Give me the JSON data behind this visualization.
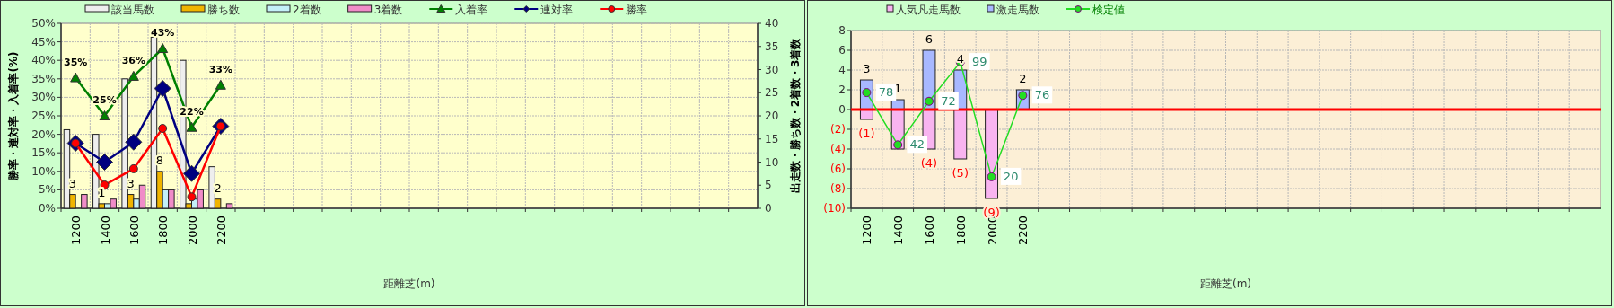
{
  "chart_data": [
    {
      "type": "bar",
      "xlabel": "距離芝(m)",
      "ylabel": "勝率・連対率・入着率(%)",
      "y2label": "出走数・勝ち数・2着数・3着数",
      "categories": [
        "1200",
        "1400",
        "1600",
        "1800",
        "2000",
        "2200",
        null,
        null,
        null,
        null,
        null,
        null,
        null,
        null,
        null,
        null,
        null,
        null,
        null,
        null,
        null,
        null,
        null,
        null
      ],
      "series": [
        {
          "name": "該当馬数",
          "axis": "y2",
          "color": "#eeeeee",
          "values": [
            17,
            16,
            28,
            37,
            32,
            9,
            null,
            null,
            null,
            null,
            null,
            null,
            null,
            null,
            null,
            null,
            null,
            null,
            null,
            null,
            null,
            null,
            null,
            null
          ]
        },
        {
          "name": "勝ち数",
          "axis": "y2",
          "color": "#f0b400",
          "values": [
            3,
            1,
            3,
            8,
            1,
            2,
            null,
            null,
            null,
            null,
            null,
            null,
            null,
            null,
            null,
            null,
            null,
            null,
            null,
            null,
            null,
            null,
            null,
            null
          ],
          "value_labels": [
            "3",
            "1",
            "3",
            "8",
            null,
            "2",
            null,
            null,
            null,
            null,
            null,
            null,
            null,
            null,
            null,
            null,
            null,
            null,
            null,
            null,
            null,
            null,
            null,
            null
          ]
        },
        {
          "name": "2着数",
          "axis": "y2",
          "color": "#c4f0f8",
          "values": [
            0,
            1,
            2,
            4,
            2,
            0,
            null,
            null,
            null,
            null,
            null,
            null,
            null,
            null,
            null,
            null,
            null,
            null,
            null,
            null,
            null,
            null,
            null,
            null
          ]
        },
        {
          "name": "3着数",
          "axis": "y2",
          "color": "#f08cc8",
          "values": [
            3,
            2,
            5,
            4,
            4,
            1,
            null,
            null,
            null,
            null,
            null,
            null,
            null,
            null,
            null,
            null,
            null,
            null,
            null,
            null,
            null,
            null,
            null,
            null
          ]
        },
        {
          "name": "入着率",
          "type": "line",
          "marker": "triangle",
          "color": "#008000",
          "values": [
            35.3,
            25,
            35.7,
            43.2,
            21.9,
            33.3,
            null,
            null,
            null,
            null,
            null,
            null,
            null,
            null,
            null,
            null,
            null,
            null,
            null,
            null,
            null,
            null,
            null,
            null
          ],
          "value_labels": [
            "35%",
            "25%",
            "36%",
            "43%",
            "22%",
            "33%",
            null,
            null,
            null,
            null,
            null,
            null,
            null,
            null,
            null,
            null,
            null,
            null,
            null,
            null,
            null,
            null,
            null,
            null
          ]
        },
        {
          "name": "連対率",
          "type": "line",
          "marker": "diamond",
          "color": "#000080",
          "values": [
            17.6,
            12.5,
            17.9,
            32.4,
            9.4,
            22.2,
            null,
            null,
            null,
            null,
            null,
            null,
            null,
            null,
            null,
            null,
            null,
            null,
            null,
            null,
            null,
            null,
            null,
            null
          ]
        },
        {
          "name": "勝率",
          "type": "line",
          "marker": "circle",
          "color": "#ff0000",
          "values": [
            17.6,
            6.3,
            10.7,
            21.6,
            3.1,
            22.2,
            null,
            null,
            null,
            null,
            null,
            null,
            null,
            null,
            null,
            null,
            null,
            null,
            null,
            null,
            null,
            null,
            null,
            null
          ]
        }
      ],
      "ylim": [
        0,
        50
      ],
      "yticks": [
        {
          "value": 0,
          "label": "0%"
        },
        {
          "value": 5,
          "label": "5%"
        },
        {
          "value": 10,
          "label": "10%"
        },
        {
          "value": 15,
          "label": "15%"
        },
        {
          "value": 20,
          "label": "20%"
        },
        {
          "value": 25,
          "label": "25%"
        },
        {
          "value": 30,
          "label": "30%"
        },
        {
          "value": 35,
          "label": "35%"
        },
        {
          "value": 40,
          "label": "40%"
        },
        {
          "value": 45,
          "label": "45%"
        },
        {
          "value": 50,
          "label": "50%"
        }
      ],
      "y2lim": [
        0,
        40
      ],
      "y2ticks": [
        0,
        5,
        10,
        15,
        20,
        25,
        30,
        35,
        40
      ],
      "grid": true,
      "legend": "top"
    },
    {
      "type": "bar",
      "xlabel": "距離芝(m)",
      "stacked": true,
      "categories": [
        "1200",
        "1400",
        "1600",
        "1800",
        "2000",
        "2200",
        null,
        null,
        null,
        null,
        null,
        null,
        null,
        null,
        null,
        null,
        null,
        null,
        null,
        null,
        null,
        null,
        null,
        null
      ],
      "series": [
        {
          "name": "人気凡走馬数",
          "color": "#f8b4f0",
          "values": [
            -1,
            -4,
            -4,
            -5,
            -9,
            0,
            null,
            null,
            null,
            null,
            null,
            null,
            null,
            null,
            null,
            null,
            null,
            null,
            null,
            null,
            null,
            null,
            null,
            null
          ],
          "value_labels": [
            "(1)",
            null,
            "(4)",
            "(5)",
            "(9)",
            null,
            null,
            null,
            null,
            null,
            null,
            null,
            null,
            null,
            null,
            null,
            null,
            null,
            null,
            null,
            null,
            null,
            null,
            null
          ]
        },
        {
          "name": "激走馬数",
          "color": "#a8b8ff",
          "values": [
            3,
            1,
            6,
            4,
            0,
            2,
            null,
            null,
            null,
            null,
            null,
            null,
            null,
            null,
            null,
            null,
            null,
            null,
            null,
            null,
            null,
            null,
            null,
            null
          ],
          "value_labels": [
            "3",
            "1",
            "6",
            "4",
            null,
            "2",
            null,
            null,
            null,
            null,
            null,
            null,
            null,
            null,
            null,
            null,
            null,
            null,
            null,
            null,
            null,
            null,
            null,
            null
          ]
        },
        {
          "name": "検定値",
          "type": "line",
          "axis": "y2",
          "marker": "circle",
          "color": "#22dd22",
          "values": [
            78,
            42,
            72,
            99,
            20,
            76,
            null,
            null,
            null,
            null,
            null,
            null,
            null,
            null,
            null,
            null,
            null,
            null,
            null,
            null,
            null,
            null,
            null,
            null
          ],
          "value_labels": [
            "78",
            "42",
            "72",
            "99",
            "20",
            "76",
            null,
            null,
            null,
            null,
            null,
            null,
            null,
            null,
            null,
            null,
            null,
            null,
            null,
            null,
            null,
            null,
            null,
            null
          ]
        }
      ],
      "ylim": [
        -10,
        8
      ],
      "yticks": [
        {
          "value": 8,
          "label": "8"
        },
        {
          "value": 6,
          "label": "6"
        },
        {
          "value": 4,
          "label": "4"
        },
        {
          "value": 2,
          "label": "2"
        },
        {
          "value": 0,
          "label": "0"
        },
        {
          "value": -2,
          "label": "(2)"
        },
        {
          "value": -4,
          "label": "(4)"
        },
        {
          "value": -6,
          "label": "(6)"
        },
        {
          "value": -8,
          "label": "(8)"
        },
        {
          "value": -10,
          "label": "(10)"
        }
      ],
      "y2lim": [
        -1.7,
        120.7
      ],
      "ref_lines": [
        {
          "axis": "y",
          "value": 0,
          "color": "#ff0000"
        }
      ],
      "grid": true,
      "legend": "top"
    }
  ]
}
